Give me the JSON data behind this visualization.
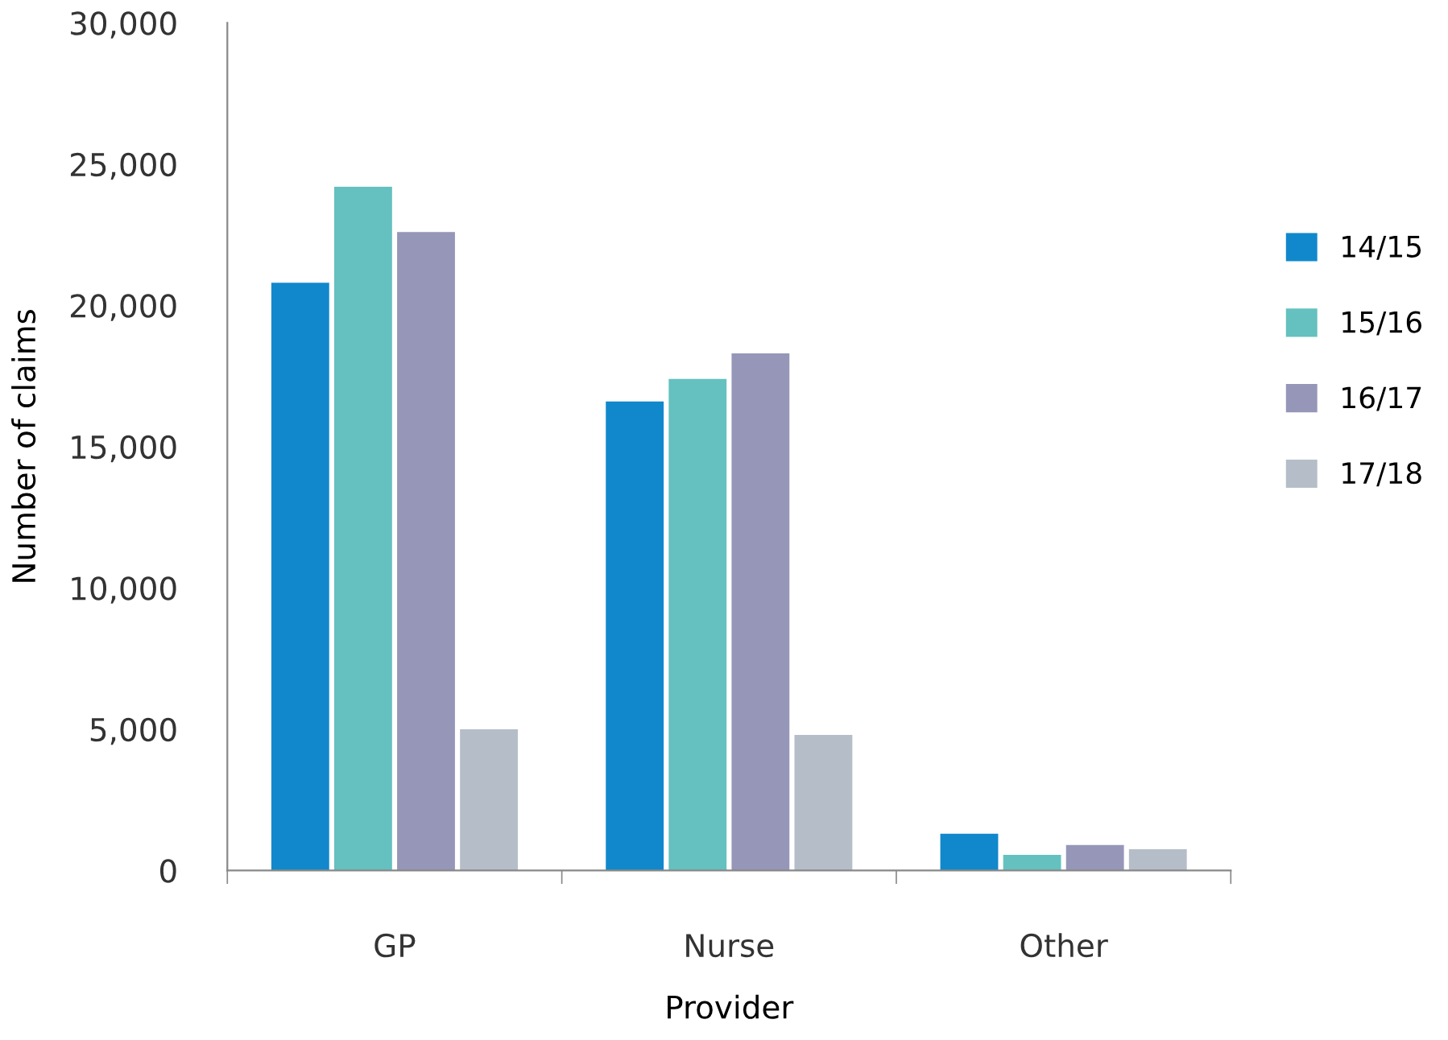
{
  "chart_data": {
    "type": "bar",
    "xlabel": "Provider",
    "ylabel": "Number of claims",
    "categories": [
      "GP",
      "Nurse",
      "Other"
    ],
    "series": [
      {
        "name": "14/15",
        "color": "#1188cc",
        "values": [
          20800,
          16600,
          1300
        ]
      },
      {
        "name": "15/16",
        "color": "#64c1bf",
        "values": [
          24200,
          17400,
          550
        ]
      },
      {
        "name": "16/17",
        "color": "#9696b9",
        "values": [
          22600,
          18300,
          900
        ]
      },
      {
        "name": "17/18",
        "color": "#b5bec8",
        "values": [
          5000,
          4800,
          750
        ]
      }
    ],
    "ylim": [
      0,
      30000
    ],
    "yticks": [
      {
        "value": 0,
        "label": "0"
      },
      {
        "value": 5000,
        "label": "5,000"
      },
      {
        "value": 10000,
        "label": "10,000"
      },
      {
        "value": 15000,
        "label": "15,000"
      },
      {
        "value": 20000,
        "label": "20,000"
      },
      {
        "value": 25000,
        "label": "25,000"
      },
      {
        "value": 30000,
        "label": "30,000"
      }
    ],
    "grid": false,
    "legend": "right"
  }
}
